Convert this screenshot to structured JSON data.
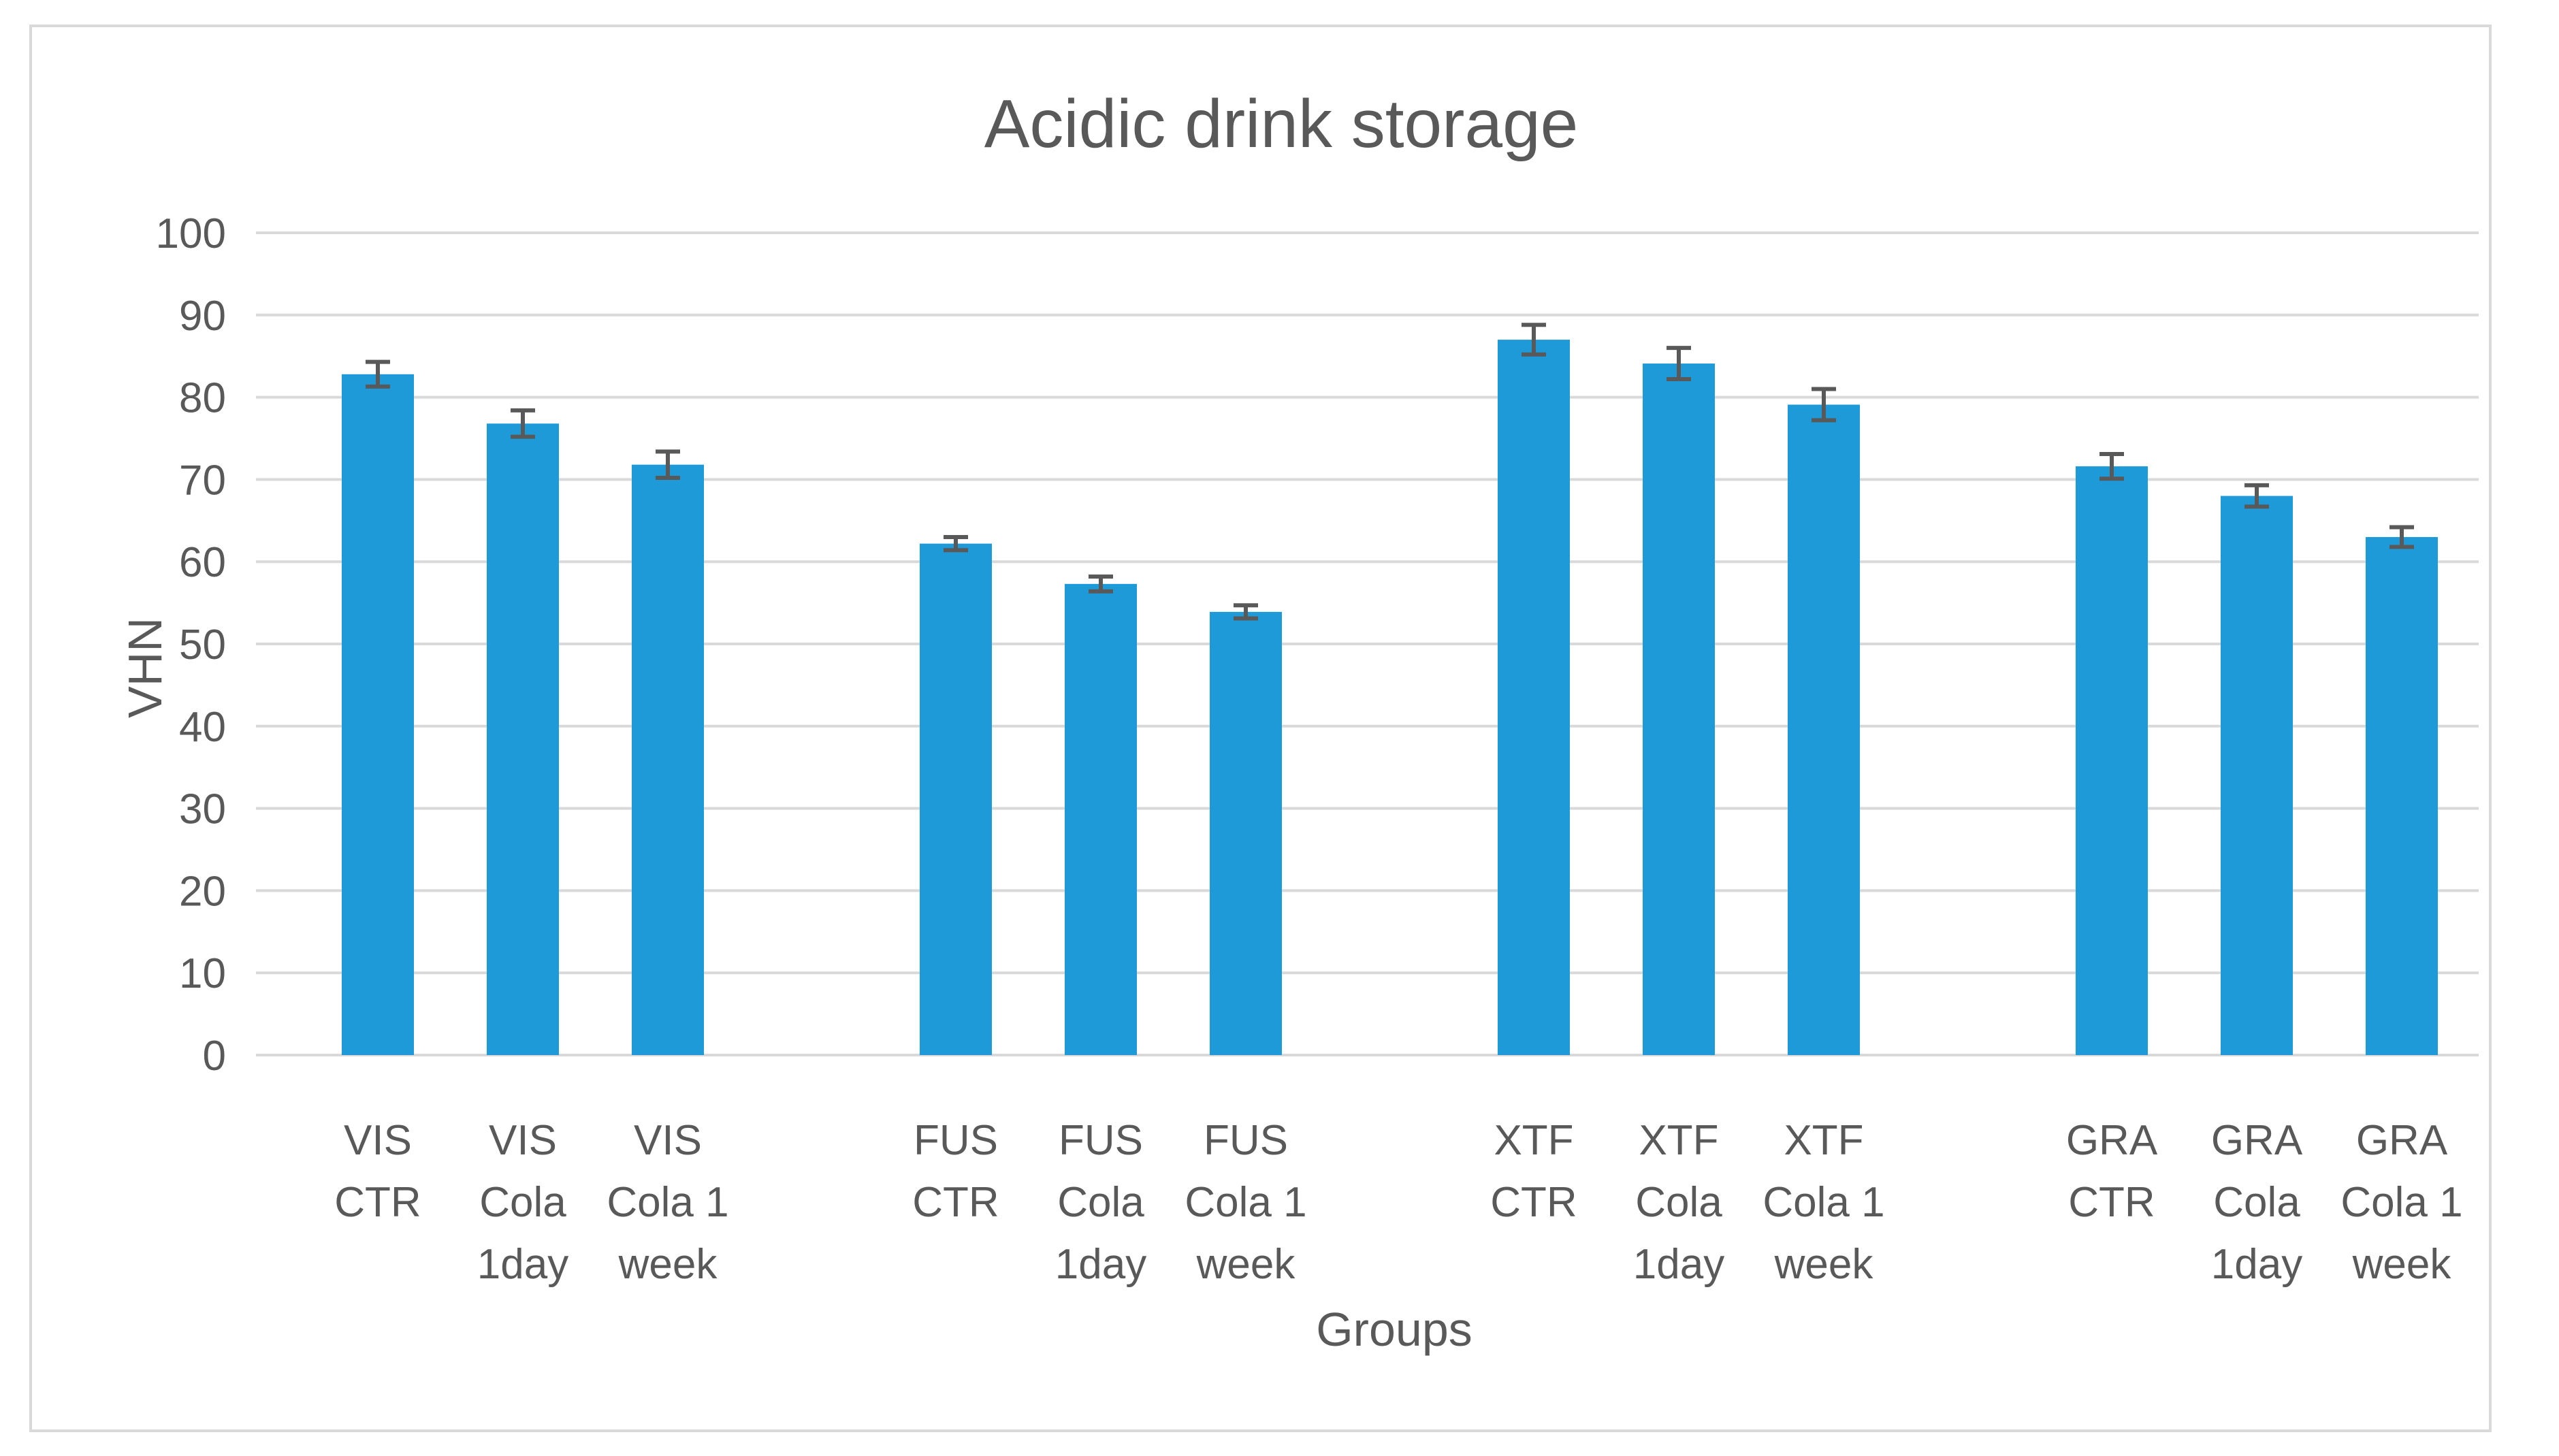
{
  "chart_data": {
    "type": "bar",
    "title": "Acidic drink storage",
    "xlabel": "Groups",
    "ylabel": "VHN",
    "ylim": [
      0,
      100
    ],
    "yticks": [
      "0",
      "10",
      "20",
      "30",
      "40",
      "50",
      "60",
      "70",
      "80",
      "90",
      "100"
    ],
    "grid": true,
    "legend": "none",
    "bar_color": "#1f9ad8",
    "categories": [
      [
        "VIS",
        "CTR"
      ],
      [
        "VIS",
        "Cola",
        "1day"
      ],
      [
        "VIS",
        "Cola 1",
        "week"
      ],
      [
        "FUS",
        "CTR"
      ],
      [
        "FUS",
        "Cola",
        "1day"
      ],
      [
        "FUS",
        "Cola 1",
        "week"
      ],
      [
        "XTF",
        "CTR"
      ],
      [
        "XTF",
        "Cola",
        "1day"
      ],
      [
        "XTF",
        "Cola 1",
        "week"
      ],
      [
        "GRA",
        "CTR"
      ],
      [
        "GRA",
        "Cola",
        "1day"
      ],
      [
        "GRA",
        "Cola 1",
        "week"
      ]
    ],
    "values": [
      82.8,
      76.8,
      71.8,
      62.2,
      57.3,
      53.9,
      87.0,
      84.1,
      79.1,
      71.6,
      68.0,
      63.0
    ],
    "errors": [
      1.5,
      1.6,
      1.6,
      0.8,
      0.9,
      0.8,
      1.8,
      1.9,
      1.9,
      1.5,
      1.3,
      1.2
    ]
  }
}
